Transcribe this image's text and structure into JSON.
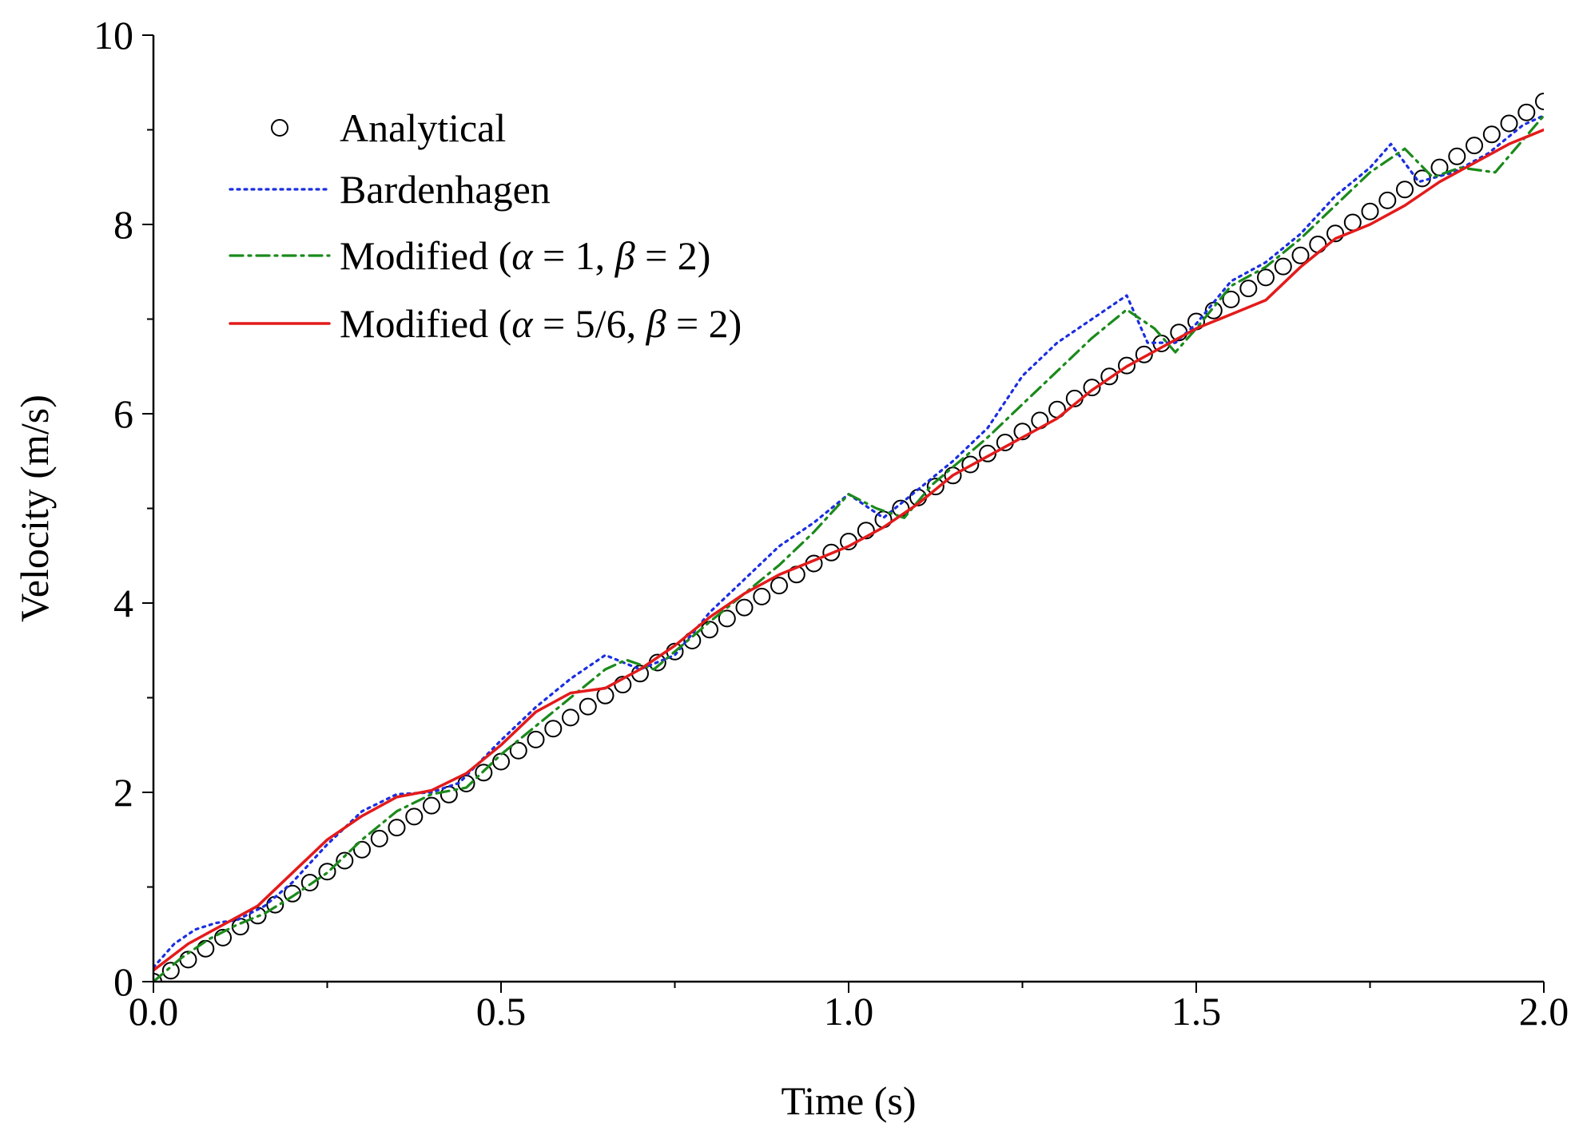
{
  "chart_data": {
    "type": "line",
    "xlabel": "Time (s)",
    "ylabel": "Velocity (m/s)",
    "xlim": [
      0,
      2.0
    ],
    "ylim": [
      0,
      10
    ],
    "xticks": [
      "0.0",
      "0.5",
      "1.0",
      "1.5",
      "2.0"
    ],
    "xtick_values": [
      0,
      0.5,
      1.0,
      1.5,
      2.0
    ],
    "yticks": [
      "0",
      "2",
      "4",
      "6",
      "8",
      "10"
    ],
    "ytick_values": [
      0,
      2,
      4,
      6,
      8,
      10
    ],
    "legend_position": "top-left",
    "series": [
      {
        "name": "Analytical",
        "legend_parts": [
          "Analytical"
        ],
        "style": "circle-markers",
        "color": "#000000",
        "marker_step": 0.025,
        "marker_start": 0,
        "marker_end": 2.0,
        "slope": 4.65,
        "intercept": 0
      },
      {
        "name": "Bardenhagen",
        "legend_parts": [
          "Bardenhagen"
        ],
        "style": "dotted",
        "color": "#1a2ee0",
        "x": [
          0,
          0.03,
          0.06,
          0.09,
          0.12,
          0.16,
          0.2,
          0.25,
          0.3,
          0.35,
          0.4,
          0.44,
          0.5,
          0.55,
          0.6,
          0.65,
          0.7,
          0.75,
          0.8,
          0.85,
          0.9,
          0.95,
          1.0,
          1.05,
          1.1,
          1.15,
          1.2,
          1.25,
          1.3,
          1.35,
          1.4,
          1.43,
          1.47,
          1.5,
          1.55,
          1.6,
          1.65,
          1.7,
          1.75,
          1.78,
          1.82,
          1.87,
          1.92,
          1.97,
          2.0
        ],
        "y": [
          0.15,
          0.4,
          0.55,
          0.62,
          0.65,
          0.8,
          1.05,
          1.45,
          1.8,
          1.98,
          2.0,
          2.1,
          2.55,
          2.9,
          3.2,
          3.45,
          3.3,
          3.45,
          3.9,
          4.25,
          4.6,
          4.85,
          5.15,
          4.9,
          5.2,
          5.5,
          5.85,
          6.4,
          6.75,
          7.0,
          7.25,
          6.75,
          6.75,
          6.95,
          7.4,
          7.6,
          7.9,
          8.3,
          8.6,
          8.85,
          8.45,
          8.55,
          8.75,
          9.05,
          9.15
        ]
      },
      {
        "name": "Modified (α = 1, β = 2)",
        "legend_parts": [
          "Modified (",
          "α",
          " = 1, ",
          "β",
          " = 2)"
        ],
        "style": "dash-dot",
        "color": "#1b8a1b",
        "x": [
          0,
          0.04,
          0.08,
          0.12,
          0.16,
          0.2,
          0.25,
          0.3,
          0.35,
          0.4,
          0.45,
          0.5,
          0.55,
          0.6,
          0.65,
          0.68,
          0.72,
          0.76,
          0.8,
          0.85,
          0.9,
          0.95,
          1.0,
          1.04,
          1.08,
          1.12,
          1.16,
          1.2,
          1.25,
          1.3,
          1.35,
          1.4,
          1.44,
          1.47,
          1.5,
          1.55,
          1.6,
          1.65,
          1.7,
          1.75,
          1.8,
          1.84,
          1.88,
          1.93,
          2.0
        ],
        "y": [
          0.0,
          0.25,
          0.45,
          0.6,
          0.72,
          0.9,
          1.15,
          1.5,
          1.8,
          1.98,
          2.05,
          2.4,
          2.7,
          3.0,
          3.3,
          3.4,
          3.3,
          3.55,
          3.8,
          4.1,
          4.4,
          4.75,
          5.15,
          5.0,
          4.9,
          5.25,
          5.5,
          5.75,
          6.1,
          6.45,
          6.8,
          7.1,
          6.9,
          6.65,
          6.9,
          7.35,
          7.55,
          7.85,
          8.2,
          8.55,
          8.8,
          8.5,
          8.6,
          8.55,
          9.15
        ]
      },
      {
        "name": "Modified (α = 5/6, β = 2)",
        "legend_parts": [
          "Modified (",
          "α",
          " = 5/6, ",
          "β",
          " = 2)"
        ],
        "style": "solid",
        "color": "#e31b1b",
        "x": [
          0,
          0.05,
          0.1,
          0.15,
          0.2,
          0.25,
          0.3,
          0.35,
          0.4,
          0.45,
          0.5,
          0.55,
          0.6,
          0.65,
          0.7,
          0.75,
          0.8,
          0.85,
          0.9,
          0.95,
          1.0,
          1.05,
          1.1,
          1.15,
          1.2,
          1.25,
          1.3,
          1.35,
          1.4,
          1.45,
          1.5,
          1.55,
          1.6,
          1.65,
          1.7,
          1.75,
          1.8,
          1.85,
          1.9,
          1.95,
          2.0
        ],
        "y": [
          0.12,
          0.4,
          0.6,
          0.8,
          1.15,
          1.5,
          1.75,
          1.95,
          2.02,
          2.2,
          2.5,
          2.85,
          3.05,
          3.1,
          3.3,
          3.55,
          3.85,
          4.1,
          4.3,
          4.45,
          4.6,
          4.8,
          5.05,
          5.35,
          5.55,
          5.75,
          5.95,
          6.25,
          6.5,
          6.7,
          6.9,
          7.05,
          7.2,
          7.55,
          7.85,
          8.0,
          8.2,
          8.45,
          8.65,
          8.85,
          9.0
        ]
      }
    ]
  }
}
